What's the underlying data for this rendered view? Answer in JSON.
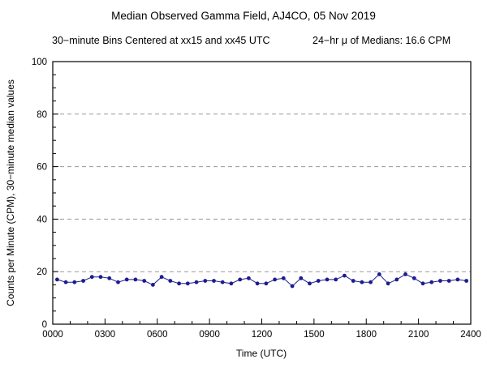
{
  "title": "Median Observed Gamma Field, AJ4CO, 05 Nov 2019",
  "subtitle_left": "30−minute Bins Centered at xx15 and xx45 UTC",
  "subtitle_right": "24−hr μ of Medians: 16.6 CPM",
  "chart_data": {
    "type": "line",
    "title": "Median Observed Gamma Field, AJ4CO, 05 Nov 2019",
    "xlabel": "Time (UTC)",
    "ylabel": "Counts per Minute (CPM), 30−minute median values",
    "xlim": [
      0,
      24
    ],
    "ylim": [
      0,
      100
    ],
    "x_ticks": [
      {
        "value": 0,
        "label": "0000"
      },
      {
        "value": 3,
        "label": "0300"
      },
      {
        "value": 6,
        "label": "0600"
      },
      {
        "value": 9,
        "label": "0900"
      },
      {
        "value": 12,
        "label": "1200"
      },
      {
        "value": 15,
        "label": "1500"
      },
      {
        "value": 18,
        "label": "1800"
      },
      {
        "value": 21,
        "label": "2100"
      },
      {
        "value": 24,
        "label": "2400"
      }
    ],
    "x_minor_step": 1,
    "y_ticks": [
      0,
      20,
      40,
      60,
      80,
      100
    ],
    "y_minor_step": 5,
    "grid_y": [
      20,
      40,
      60,
      80
    ],
    "grid_on": true,
    "legend": "none",
    "bin_description": "30-minute bins centered at xx15 and xx45 UTC",
    "mean_of_medians_cpm": 16.6,
    "x_hours": [
      0.25,
      0.75,
      1.25,
      1.75,
      2.25,
      2.75,
      3.25,
      3.75,
      4.25,
      4.75,
      5.25,
      5.75,
      6.25,
      6.75,
      7.25,
      7.75,
      8.25,
      8.75,
      9.25,
      9.75,
      10.25,
      10.75,
      11.25,
      11.75,
      12.25,
      12.75,
      13.25,
      13.75,
      14.25,
      14.75,
      15.25,
      15.75,
      16.25,
      16.75,
      17.25,
      17.75,
      18.25,
      18.75,
      19.25,
      19.75,
      20.25,
      20.75,
      21.25,
      21.75,
      22.25,
      22.75,
      23.25,
      23.75
    ],
    "values": [
      17,
      16,
      16,
      16.5,
      18,
      18,
      17.5,
      16,
      17,
      17,
      16.5,
      15,
      18,
      16.5,
      15.5,
      15.5,
      16,
      16.5,
      16.5,
      16,
      15.5,
      17,
      17.5,
      15.5,
      15.5,
      17,
      17.5,
      14.5,
      17.5,
      15.5,
      16.5,
      17,
      17,
      18.5,
      16.5,
      16,
      16,
      19,
      15.5,
      17,
      19,
      17.5,
      15.5,
      16,
      16.5,
      16.5,
      17,
      16.5
    ],
    "line_color": "#1c1c8f",
    "marker_color": "#1c1c8f",
    "grid_color": "#999999",
    "axis_color": "#000000"
  }
}
